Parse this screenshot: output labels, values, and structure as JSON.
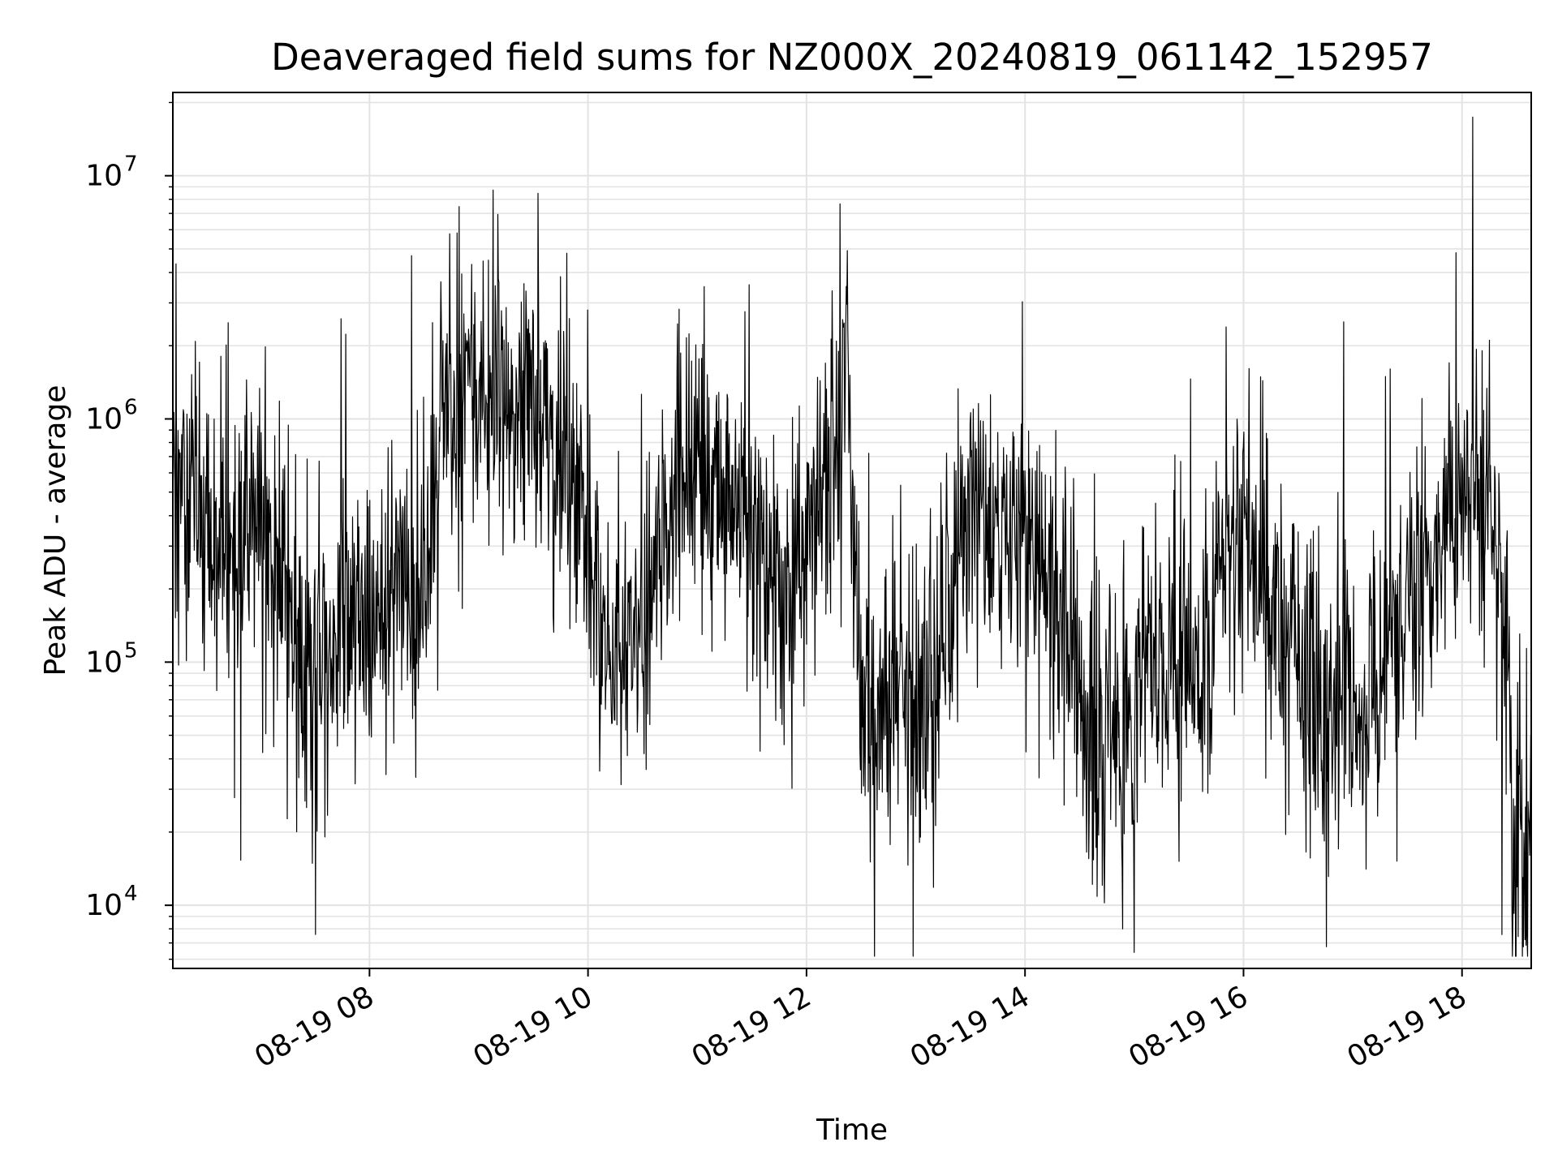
{
  "chart_data": {
    "type": "line",
    "title": "Deaveraged field sums for NZ000X_20240819_061142_152957",
    "xlabel": "Time",
    "ylabel": "Peak ADU - average",
    "x_scale": "time",
    "y_scale": "log",
    "xlim": [
      "2024-08-19 06:12",
      "2024-08-19 18:38"
    ],
    "ylim": [
      5500,
      22000000
    ],
    "x_ticks": [
      "2024-08-19 08:00",
      "2024-08-19 10:00",
      "2024-08-19 12:00",
      "2024-08-19 14:00",
      "2024-08-19 16:00",
      "2024-08-19 18:00"
    ],
    "x_tick_labels": [
      "08-19 08",
      "08-19 10",
      "08-19 12",
      "08-19 14",
      "08-19 16",
      "08-19 18"
    ],
    "y_tick_labels": [
      {
        "value": 10000,
        "base": "10",
        "exp": "4"
      },
      {
        "value": 100000,
        "base": "10",
        "exp": "5"
      },
      {
        "value": 1000000,
        "base": "10",
        "exp": "6"
      },
      {
        "value": 10000000,
        "base": "10",
        "exp": "7"
      }
    ],
    "grid": true,
    "legend": "none",
    "line_color": "#000000",
    "series": [
      {
        "x": [
          "2024-08-19 06:12",
          "2024-08-19 06:30",
          "2024-08-19 06:45",
          "2024-08-19 07:00",
          "2024-08-19 07:15",
          "2024-08-19 07:30",
          "2024-08-19 07:45",
          "2024-08-19 08:00",
          "2024-08-19 08:15",
          "2024-08-19 08:30",
          "2024-08-19 08:40",
          "2024-08-19 08:50",
          "2024-08-19 09:00",
          "2024-08-19 09:15",
          "2024-08-19 09:30",
          "2024-08-19 09:45",
          "2024-08-19 09:55",
          "2024-08-19 10:05",
          "2024-08-19 10:15",
          "2024-08-19 10:30",
          "2024-08-19 10:45",
          "2024-08-19 11:00",
          "2024-08-19 11:15",
          "2024-08-19 11:30",
          "2024-08-19 11:45",
          "2024-08-19 12:00",
          "2024-08-19 12:15",
          "2024-08-19 12:22",
          "2024-08-19 12:30",
          "2024-08-19 12:45",
          "2024-08-19 13:00",
          "2024-08-19 13:15",
          "2024-08-19 13:30",
          "2024-08-19 13:45",
          "2024-08-19 14:00",
          "2024-08-19 14:15",
          "2024-08-19 14:25",
          "2024-08-19 14:35",
          "2024-08-19 14:50",
          "2024-08-19 15:05",
          "2024-08-19 15:20",
          "2024-08-19 15:35",
          "2024-08-19 15:50",
          "2024-08-19 16:05",
          "2024-08-19 16:20",
          "2024-08-19 16:35",
          "2024-08-19 16:50",
          "2024-08-19 17:05",
          "2024-08-19 17:20",
          "2024-08-19 17:35",
          "2024-08-19 17:50",
          "2024-08-19 18:05",
          "2024-08-19 18:15",
          "2024-08-19 18:22",
          "2024-08-19 18:28",
          "2024-08-19 18:38"
        ],
        "y": [
          600000,
          350000,
          300000,
          400000,
          150000,
          90000,
          200000,
          130000,
          150000,
          200000,
          1100000,
          1300000,
          1500000,
          1000000,
          1200000,
          700000,
          650000,
          150000,
          120000,
          130000,
          500000,
          600000,
          550000,
          400000,
          180000,
          300000,
          700000,
          1800000,
          70000,
          65000,
          70000,
          80000,
          600000,
          300000,
          400000,
          200000,
          200000,
          35000,
          60000,
          90000,
          120000,
          70000,
          350000,
          300000,
          150000,
          90000,
          60000,
          70000,
          120000,
          200000,
          350000,
          500000,
          450000,
          200000,
          18000,
          12000
        ]
      }
    ]
  }
}
